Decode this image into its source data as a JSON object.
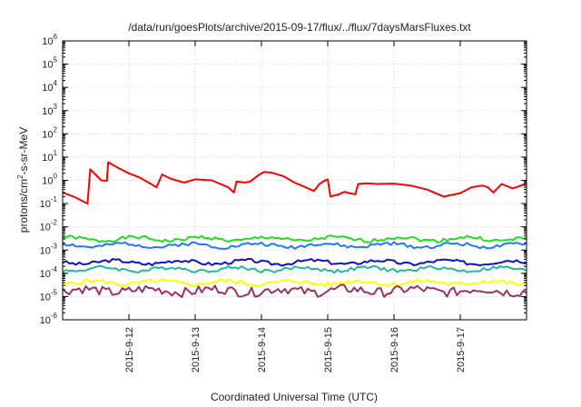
{
  "chart_data": {
    "type": "line",
    "title": "/data/run/goesPlots/archive/2015-09-17/flux/../flux/7daysMarsFluxes.txt",
    "xlabel": "Coordinated Universal Time (UTC)",
    "ylabel_main": "protons/cm",
    "ylabel_sup": "2",
    "ylabel_tail": "-s-sr-MeV",
    "y_scale": "log",
    "ylim": [
      1e-06,
      1000000.0
    ],
    "x_range_days": [
      "2015-09-11T00:00",
      "2015-09-18T00:00"
    ],
    "grid": true,
    "legend": "none",
    "y_tick_labels": [
      {
        "base": "10",
        "exp": "-6"
      },
      {
        "base": "10",
        "exp": "-5"
      },
      {
        "base": "10",
        "exp": "-4"
      },
      {
        "base": "10",
        "exp": "-3"
      },
      {
        "base": "10",
        "exp": "-2"
      },
      {
        "base": "10",
        "exp": "-1"
      },
      {
        "base": "10",
        "exp": "0"
      },
      {
        "base": "10",
        "exp": "1"
      },
      {
        "base": "10",
        "exp": "2"
      },
      {
        "base": "10",
        "exp": "3"
      },
      {
        "base": "10",
        "exp": "4"
      },
      {
        "base": "10",
        "exp": "5"
      },
      {
        "base": "10",
        "exp": "6"
      }
    ],
    "x_tick_labels": [
      "2015-9-12",
      "2015-9-13",
      "2015-9-14",
      "2015-9-15",
      "2015-9-16",
      "2015-9-17"
    ],
    "x_tick_values": [
      "2015-09-12",
      "2015-09-13",
      "2015-09-14",
      "2015-09-15",
      "2015-09-16",
      "2015-09-17"
    ],
    "series": [
      {
        "color": "#ff0000",
        "width": 2,
        "x": [
          "2015-09-11T00:00",
          "2015-09-11T04:00",
          "2015-09-11T09:00",
          "2015-09-11T10:00",
          "2015-09-11T14:00",
          "2015-09-11T16:00",
          "2015-09-11T16:30",
          "2015-09-11T20:00",
          "2015-09-12T00:00",
          "2015-09-12T04:00",
          "2015-09-12T08:00",
          "2015-09-12T10:00",
          "2015-09-12T12:00",
          "2015-09-12T15:00",
          "2015-09-12T20:00",
          "2015-09-13T00:00",
          "2015-09-13T06:00",
          "2015-09-13T12:00",
          "2015-09-13T14:00",
          "2015-09-13T15:00",
          "2015-09-13T18:00",
          "2015-09-13T20:00",
          "2015-09-13T23:00",
          "2015-09-14T01:00",
          "2015-09-14T04:00",
          "2015-09-14T08:00",
          "2015-09-14T12:00",
          "2015-09-14T16:00",
          "2015-09-14T19:00",
          "2015-09-14T21:00",
          "2015-09-14T23:00",
          "2015-09-15T00:00",
          "2015-09-15T01:00",
          "2015-09-15T04:00",
          "2015-09-15T06:00",
          "2015-09-15T08:00",
          "2015-09-15T10:00",
          "2015-09-15T11:00",
          "2015-09-15T14:00",
          "2015-09-15T18:00",
          "2015-09-16T00:00",
          "2015-09-16T06:00",
          "2015-09-16T12:00",
          "2015-09-16T18:00",
          "2015-09-17T00:00",
          "2015-09-17T04:00",
          "2015-09-17T08:00",
          "2015-09-17T10:00",
          "2015-09-17T12:00",
          "2015-09-17T15:00",
          "2015-09-17T19:00",
          "2015-09-17T23:30"
        ],
        "y": [
          0.3,
          0.2,
          0.1,
          3,
          1.0,
          0.95,
          6,
          3.5,
          2.0,
          1.3,
          0.7,
          0.5,
          1.8,
          1.2,
          0.8,
          1.1,
          1.0,
          0.5,
          0.3,
          0.9,
          0.8,
          0.9,
          1.7,
          2.3,
          2.1,
          1.5,
          0.8,
          0.5,
          0.35,
          0.7,
          1.0,
          1.1,
          0.2,
          0.25,
          0.32,
          0.28,
          0.25,
          0.7,
          0.75,
          0.7,
          0.72,
          0.6,
          0.4,
          0.2,
          0.28,
          0.5,
          0.6,
          0.5,
          0.3,
          0.7,
          0.45,
          0.7
        ]
      },
      {
        "color": "#22dd22",
        "width": 2,
        "base": 0.003,
        "amp": 0.15,
        "seed": 1
      },
      {
        "color": "#2277ff",
        "width": 2,
        "base": 0.0016,
        "amp": 0.15,
        "seed": 2
      },
      {
        "color": "#1111cc",
        "width": 2,
        "base": 0.0003,
        "amp": 0.15,
        "seed": 3
      },
      {
        "color": "#22bb99",
        "width": 2,
        "base": 0.00015,
        "amp": 0.15,
        "seed": 4
      },
      {
        "color": "#ffff00",
        "width": 2,
        "base": 4e-05,
        "amp": 0.2,
        "seed": 5
      },
      {
        "color": "#993366",
        "width": 2,
        "base": 1.8e-05,
        "amp": 0.4,
        "seed": 6
      }
    ]
  }
}
